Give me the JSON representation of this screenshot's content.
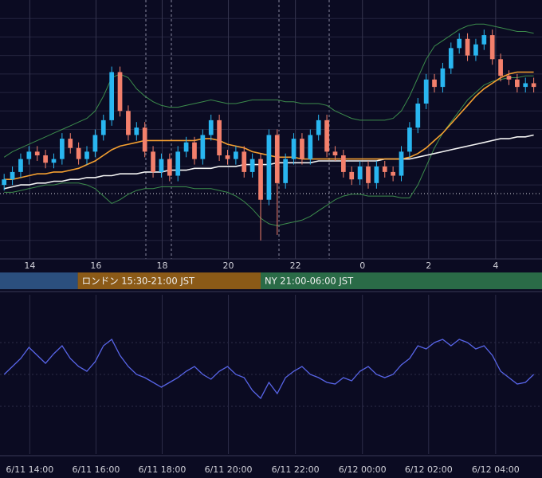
{
  "chart_data": [
    {
      "type": "candlestick",
      "xlim": [
        0,
        65.5
      ],
      "xticks": [
        {
          "value": 3.6,
          "label": "14"
        },
        {
          "value": 11.6,
          "label": "16"
        },
        {
          "value": 19.6,
          "label": "18"
        },
        {
          "value": 27.6,
          "label": "20"
        },
        {
          "value": 35.7,
          "label": "22"
        },
        {
          "value": 43.8,
          "label": "0"
        },
        {
          "value": 51.8,
          "label": "2"
        },
        {
          "value": 59.9,
          "label": "4"
        }
      ],
      "ylim": [
        0,
        140
      ],
      "yticks": [
        10,
        20,
        30,
        40,
        50,
        60,
        70,
        80,
        90,
        100,
        110,
        120,
        130
      ],
      "grid": true,
      "up_color": "#29b6f0",
      "down_color": "#f3806c",
      "open": [
        40,
        43,
        47,
        54,
        58,
        56,
        52,
        54,
        65,
        60,
        54,
        58,
        67,
        75,
        101,
        80,
        67,
        71,
        58,
        47,
        54,
        45,
        58,
        63,
        54,
        67,
        75,
        56,
        54,
        58,
        47,
        54,
        32,
        67,
        41,
        54,
        65,
        54,
        67,
        75,
        58,
        56,
        47,
        43,
        50,
        41,
        50,
        47,
        45,
        58,
        71,
        84,
        97,
        93,
        103,
        114,
        119,
        110,
        116,
        121,
        108,
        99,
        97,
        93,
        95
      ],
      "high": [
        46,
        50,
        57,
        61,
        61,
        59,
        57,
        68,
        68,
        63,
        61,
        70,
        78,
        104,
        104,
        83,
        74,
        74,
        61,
        57,
        57,
        61,
        66,
        66,
        70,
        78,
        78,
        59,
        61,
        61,
        57,
        57,
        70,
        70,
        57,
        68,
        68,
        70,
        78,
        78,
        61,
        59,
        50,
        53,
        53,
        53,
        53,
        50,
        61,
        74,
        87,
        100,
        100,
        106,
        117,
        122,
        122,
        119,
        124,
        124,
        111,
        102,
        100,
        98,
        98
      ],
      "low": [
        37,
        40,
        44,
        51,
        53,
        49,
        49,
        51,
        57,
        51,
        51,
        55,
        64,
        72,
        77,
        64,
        64,
        55,
        44,
        44,
        42,
        42,
        55,
        51,
        51,
        64,
        53,
        51,
        51,
        44,
        44,
        10,
        29,
        13,
        38,
        51,
        51,
        51,
        64,
        55,
        53,
        44,
        40,
        40,
        38,
        38,
        44,
        42,
        42,
        55,
        68,
        81,
        90,
        90,
        100,
        111,
        107,
        107,
        113,
        105,
        96,
        94,
        90,
        90,
        90
      ],
      "close": [
        43,
        47,
        54,
        58,
        56,
        52,
        54,
        65,
        60,
        54,
        58,
        67,
        75,
        101,
        80,
        67,
        71,
        58,
        47,
        54,
        45,
        58,
        63,
        54,
        67,
        75,
        56,
        54,
        58,
        47,
        54,
        32,
        67,
        41,
        54,
        65,
        54,
        67,
        75,
        58,
        56,
        47,
        43,
        50,
        41,
        50,
        47,
        45,
        58,
        71,
        84,
        97,
        93,
        103,
        114,
        119,
        110,
        116,
        121,
        108,
        99,
        97,
        93,
        95,
        93
      ],
      "series": [
        {
          "color": "#3c8c4c",
          "values": [
            55,
            58,
            60,
            62,
            64,
            66,
            68,
            70,
            72,
            74,
            76,
            80,
            88,
            98,
            100,
            98,
            92,
            88,
            85,
            83,
            82,
            82,
            83,
            84,
            85,
            86,
            85,
            84,
            84,
            85,
            86,
            86,
            86,
            86,
            85,
            85,
            84,
            84,
            84,
            83,
            80,
            78,
            76,
            75,
            75,
            75,
            75,
            76,
            80,
            88,
            98,
            108,
            115,
            118,
            121,
            124,
            126,
            127,
            127,
            126,
            125,
            124,
            123,
            123,
            122
          ]
        },
        {
          "color": "#3c8c4c",
          "values": [
            36,
            36,
            37,
            38,
            39,
            40,
            40,
            41,
            41,
            41,
            40,
            38,
            34,
            30,
            32,
            35,
            37,
            38,
            38,
            39,
            39,
            39,
            39,
            38,
            38,
            38,
            37,
            36,
            34,
            31,
            27,
            22,
            19,
            18,
            19,
            20,
            21,
            23,
            26,
            29,
            32,
            34,
            35,
            35,
            34,
            34,
            34,
            34,
            33,
            33,
            40,
            50,
            60,
            68,
            74,
            80,
            86,
            90,
            94,
            96,
            97,
            98,
            98,
            99,
            99
          ]
        },
        {
          "color": "#f4f4f4",
          "values": [
            38,
            39,
            40,
            40,
            41,
            41,
            42,
            42,
            43,
            43,
            44,
            44,
            45,
            45,
            46,
            46,
            46,
            47,
            47,
            47,
            48,
            48,
            48,
            49,
            49,
            49,
            50,
            50,
            50,
            51,
            51,
            51,
            51,
            52,
            52,
            52,
            52,
            52,
            53,
            53,
            53,
            53,
            53,
            53,
            53,
            53,
            54,
            54,
            54,
            54,
            55,
            56,
            57,
            58,
            59,
            60,
            61,
            62,
            63,
            64,
            65,
            65,
            66,
            66,
            67
          ]
        },
        {
          "color": "#f5a030",
          "values": [
            43,
            43,
            44,
            45,
            46,
            46,
            47,
            47,
            48,
            49,
            51,
            53,
            56,
            59,
            61,
            62,
            63,
            64,
            64,
            64,
            64,
            64,
            64,
            64,
            65,
            65,
            64,
            62,
            61,
            60,
            58,
            57,
            56,
            55,
            55,
            55,
            54,
            54,
            54,
            54,
            54,
            54,
            54,
            54,
            54,
            54,
            54,
            54,
            54,
            55,
            57,
            60,
            64,
            68,
            73,
            78,
            83,
            88,
            92,
            95,
            98,
            100,
            101,
            101,
            101
          ]
        }
      ],
      "hline": 35.3,
      "sessions": [
        {
          "start": 0,
          "end": 9.4,
          "color": "#2b4f7e"
        },
        {
          "start": 9.4,
          "end": 31.5,
          "color": "#8b5a17",
          "label": "ロンドン 15:30-21:00 JST"
        },
        {
          "start": 31.5,
          "end": 65.5,
          "color": "#2a6b47",
          "label": "NY 21:00-06:00 JST"
        }
      ]
    },
    {
      "type": "line",
      "xlim": [
        0,
        65.5
      ],
      "xticks": [
        {
          "value": 3.6,
          "label": "6/11 14:00"
        },
        {
          "value": 11.6,
          "label": "6/11 16:00"
        },
        {
          "value": 19.6,
          "label": "6/11 18:00"
        },
        {
          "value": 27.6,
          "label": "6/11 20:00"
        },
        {
          "value": 35.7,
          "label": "6/11 22:00"
        },
        {
          "value": 43.8,
          "label": "6/12 00:00"
        },
        {
          "value": 51.8,
          "label": "6/12 02:00"
        },
        {
          "value": 59.9,
          "label": "6/12 04:00"
        }
      ],
      "ylim": [
        0,
        100
      ],
      "yticks": [
        30,
        50,
        70
      ],
      "grid": true,
      "series": [
        {
          "color": "#5865e8",
          "values": [
            50,
            55,
            60,
            67,
            62,
            57,
            63,
            68,
            60,
            55,
            52,
            58,
            68,
            72,
            62,
            55,
            50,
            48,
            45,
            42,
            45,
            48,
            52,
            55,
            50,
            47,
            52,
            55,
            50,
            48,
            40,
            35,
            45,
            38,
            48,
            52,
            55,
            50,
            48,
            45,
            44,
            48,
            46,
            52,
            55,
            50,
            48,
            50,
            56,
            60,
            68,
            66,
            70,
            72,
            68,
            72,
            70,
            66,
            68,
            62,
            52,
            48,
            44,
            45,
            50
          ]
        }
      ]
    }
  ]
}
